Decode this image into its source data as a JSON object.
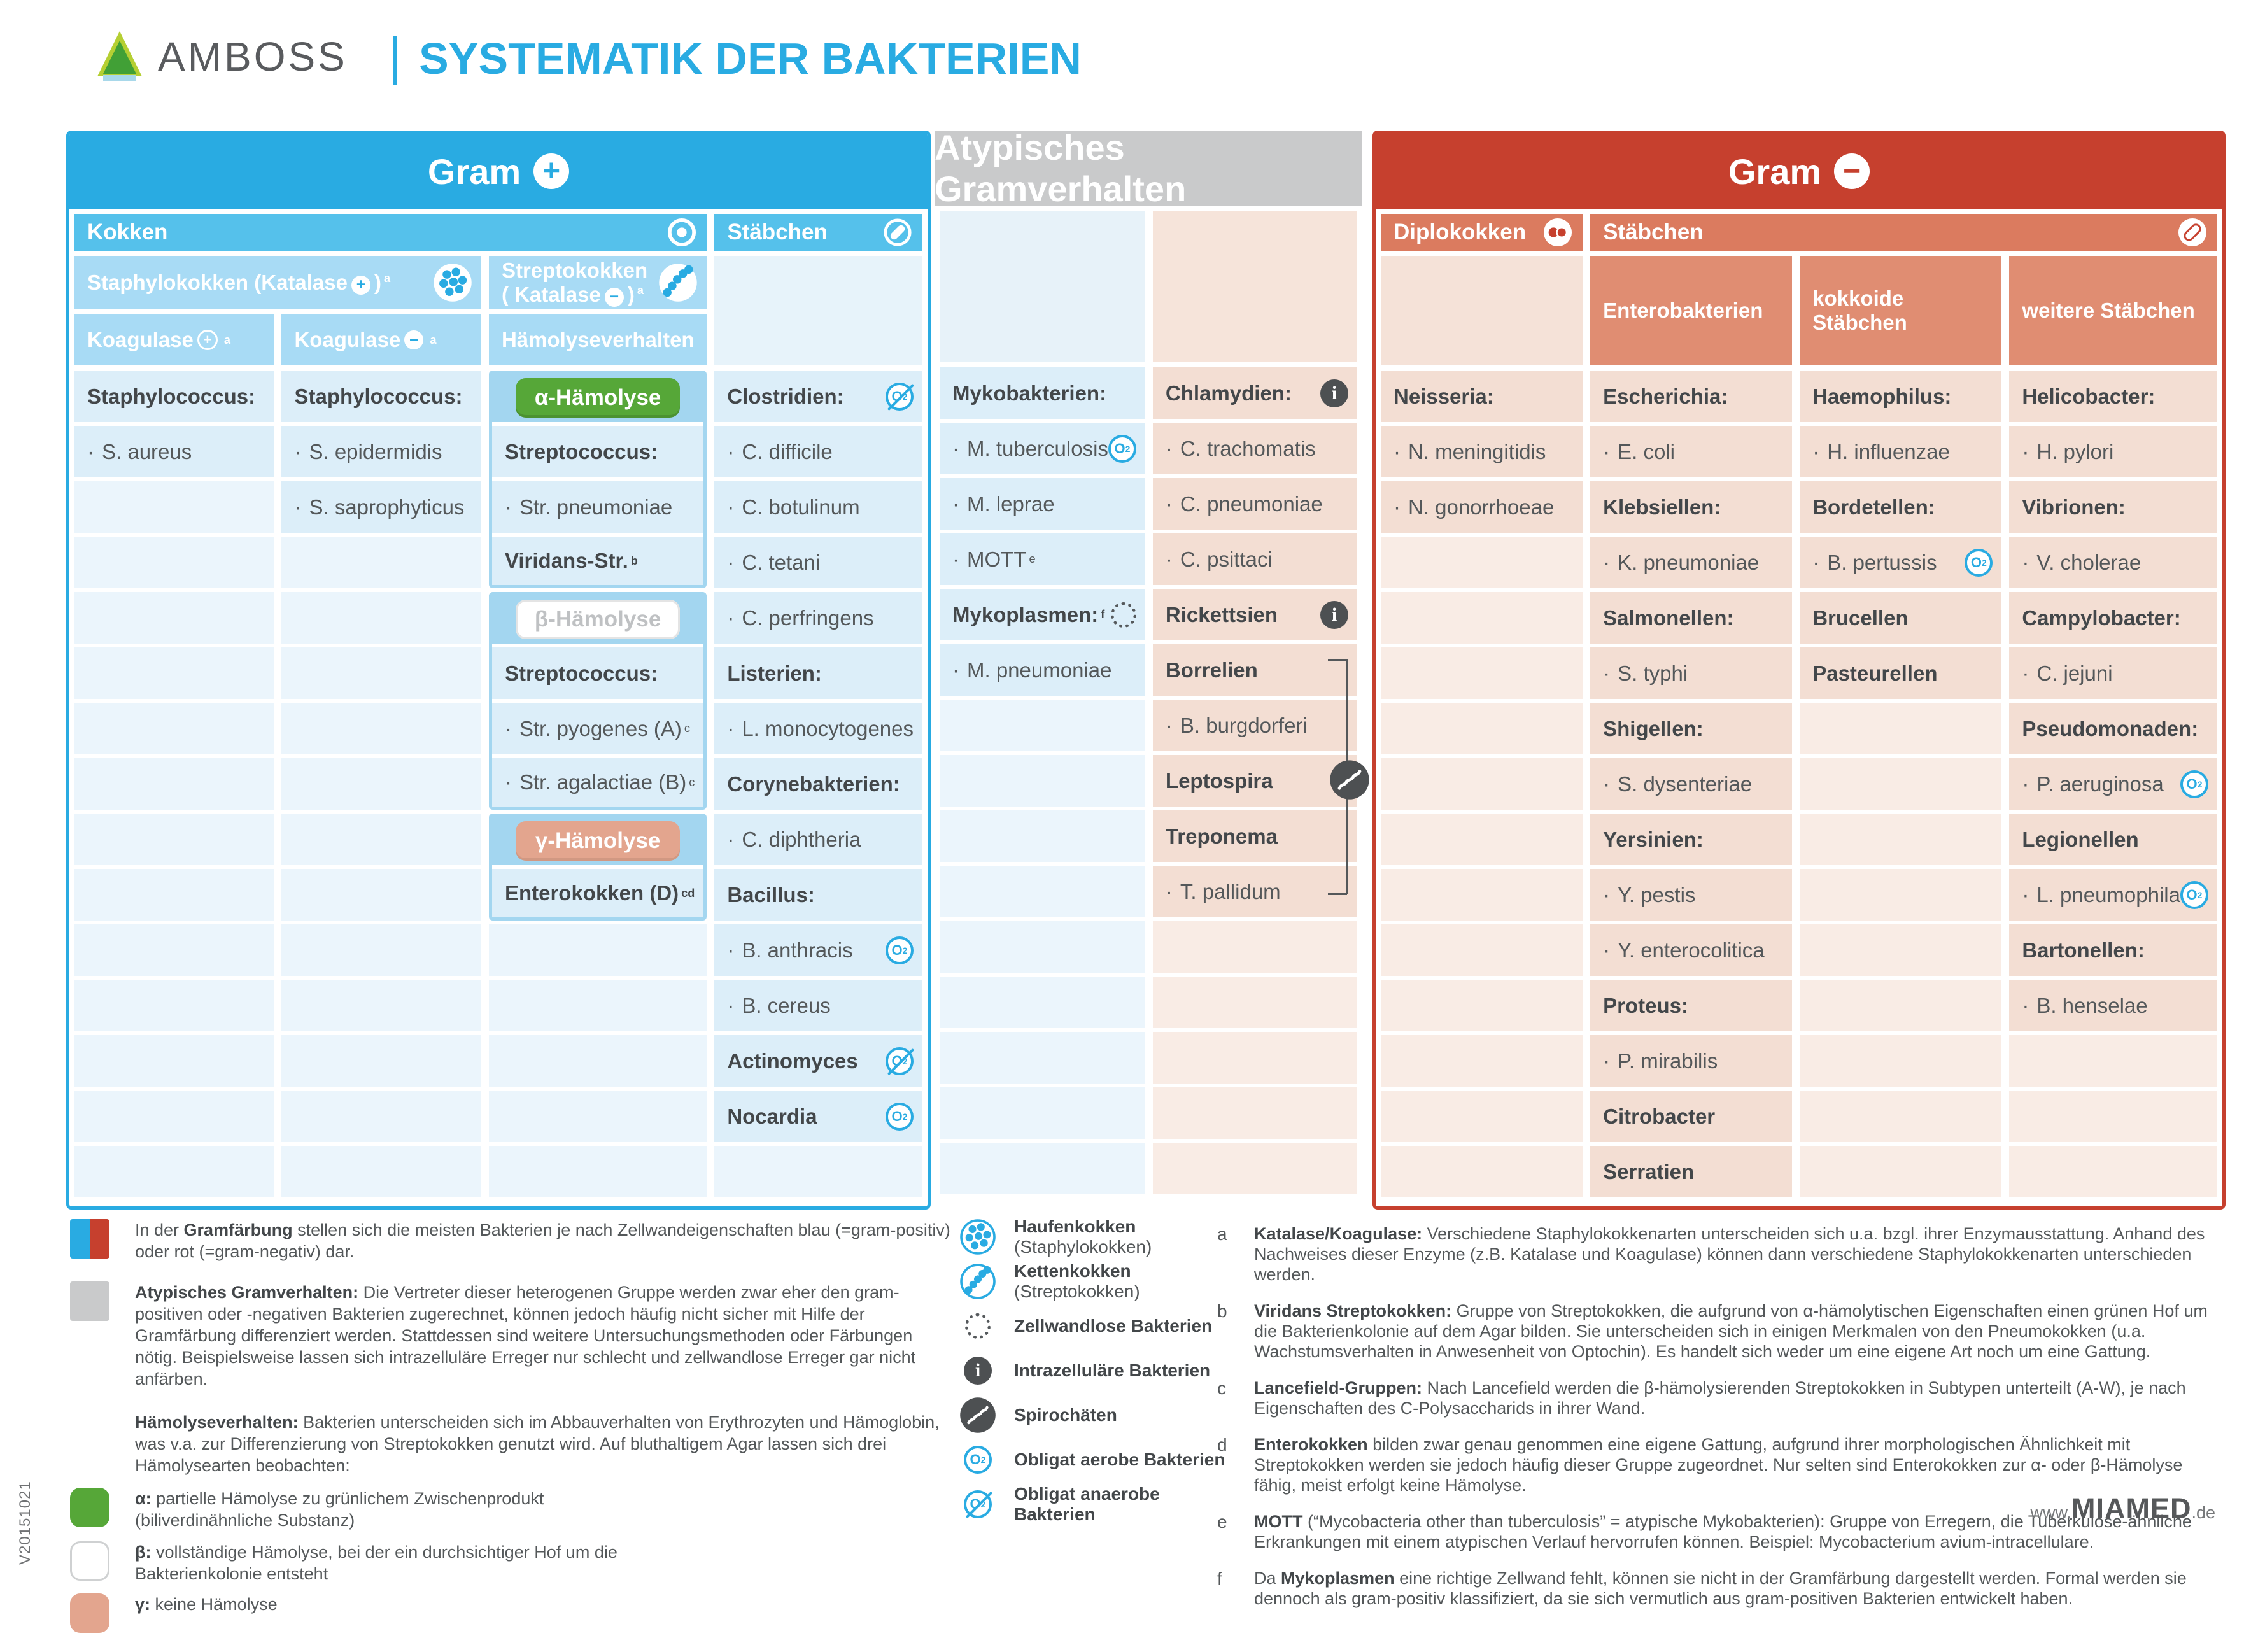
{
  "brand": {
    "name": "AMBOSS"
  },
  "title": "SYSTEMATIK DER BAKTERIEN",
  "version": "V20151021",
  "footer": {
    "pre": "www.",
    "mid": "MIAMED",
    "post": ".de"
  },
  "colors": {
    "cyan": "#29abe2",
    "cyan_row": "#55c1eb",
    "cyan_sub": "#a8dbf5",
    "blue_row": "#dceef9",
    "red": "#c6402e",
    "salmon_row": "#db7b5f",
    "salmon_sub": "#e08d72",
    "peach_row": "#f3ded3",
    "gray_header": "#c9cacb",
    "green_pill": "#56a738",
    "gamma_pill": "#e3a58e"
  },
  "gram_plus": {
    "title": "Gram",
    "sign": "+",
    "headers": {
      "kokken": "Kokken",
      "staebchen": "Stäbchen",
      "staph": {
        "pre": "Staphylokokken  (Katalase",
        "sign": "+",
        "post": ")",
        "sup": "a"
      },
      "strep": {
        "line1": "Streptokokken",
        "pre2": "( Katalase",
        "sign": "−",
        "post2": ")",
        "sup": "a"
      },
      "koagulase_pos": {
        "pre": "Koagulase",
        "sign": "+",
        "sup": "a"
      },
      "koagulase_neg": {
        "pre": "Koagulase",
        "sign": "−",
        "sup": "a"
      },
      "haemolyse": "Hämolyseverhalten"
    },
    "columns": {
      "koagulase_pos": [
        {
          "variant": "head",
          "text": "Staphylococcus:"
        },
        {
          "variant": "item",
          "text": "S. aureus"
        },
        {
          "variant": "empty"
        },
        {
          "variant": "empty"
        },
        {
          "variant": "empty"
        },
        {
          "variant": "empty"
        },
        {
          "variant": "empty"
        },
        {
          "variant": "empty"
        },
        {
          "variant": "empty"
        },
        {
          "variant": "empty"
        },
        {
          "variant": "empty"
        },
        {
          "variant": "empty"
        },
        {
          "variant": "empty"
        },
        {
          "variant": "empty"
        },
        {
          "variant": "empty"
        }
      ],
      "koagulase_neg": [
        {
          "variant": "head",
          "text": "Staphylococcus:"
        },
        {
          "variant": "item",
          "text": "S. epidermidis"
        },
        {
          "variant": "item",
          "text": "S. saprophyticus"
        },
        {
          "variant": "empty"
        },
        {
          "variant": "empty"
        },
        {
          "variant": "empty"
        },
        {
          "variant": "empty"
        },
        {
          "variant": "empty"
        },
        {
          "variant": "empty"
        },
        {
          "variant": "empty"
        },
        {
          "variant": "empty"
        },
        {
          "variant": "empty"
        },
        {
          "variant": "empty"
        },
        {
          "variant": "empty"
        },
        {
          "variant": "empty"
        }
      ],
      "haemolyse": [
        {
          "group": [
            {
              "variant": "band",
              "pill": "alpha",
              "text": "α-Hämolyse"
            },
            {
              "variant": "head",
              "text": "Streptococcus:"
            },
            {
              "variant": "item",
              "text": "Str. pneumoniae"
            },
            {
              "variant": "head",
              "text": "Viridans-Str.",
              "sup": "b"
            }
          ]
        },
        {
          "group": [
            {
              "variant": "band",
              "pill": "beta",
              "text": "β-Hämolyse"
            },
            {
              "variant": "head",
              "text": "Streptococcus:"
            },
            {
              "variant": "item",
              "text": "Str. pyogenes (A)",
              "sup": "c"
            },
            {
              "variant": "item",
              "text": "Str. agalactiae (B)",
              "sup": "c"
            }
          ]
        },
        {
          "group": [
            {
              "variant": "band",
              "pill": "gamma",
              "text": "γ-Hämolyse"
            },
            {
              "variant": "head",
              "text": "Enterokokken (D)",
              "sup": "cd"
            }
          ]
        },
        {
          "variant": "empty"
        },
        {
          "variant": "empty"
        },
        {
          "variant": "empty"
        },
        {
          "variant": "empty"
        },
        {
          "variant": "empty"
        }
      ],
      "staebchen": [
        {
          "variant": "head",
          "text": "Clostridien:",
          "icon": "anaerobe-icon"
        },
        {
          "variant": "item",
          "text": "C. difficile"
        },
        {
          "variant": "item",
          "text": "C. botulinum"
        },
        {
          "variant": "item",
          "text": "C. tetani"
        },
        {
          "variant": "item",
          "text": "C. perfringens"
        },
        {
          "variant": "head",
          "text": "Listerien:"
        },
        {
          "variant": "item",
          "text": "L. monocytogenes"
        },
        {
          "variant": "head",
          "text": "Corynebakterien:"
        },
        {
          "variant": "item",
          "text": "C. diphtheria"
        },
        {
          "variant": "head",
          "text": "Bacillus:"
        },
        {
          "variant": "item",
          "text": "B. anthracis",
          "icon": "aerobe-icon"
        },
        {
          "variant": "item",
          "text": "B. cereus"
        },
        {
          "variant": "head",
          "text": "Actinomyces",
          "icon": "anaerobe-icon"
        },
        {
          "variant": "head",
          "text": "Nocardia",
          "icon": "aerobe-icon"
        },
        {
          "variant": "empty"
        }
      ]
    }
  },
  "atypical": {
    "title": "Atypisches Gramverhalten",
    "columns": {
      "left": [
        {
          "variant": "head",
          "text": "Mykobakterien:"
        },
        {
          "variant": "item",
          "text": "M. tuberculosis",
          "icon": "aerobe-icon"
        },
        {
          "variant": "item",
          "text": "M. leprae"
        },
        {
          "variant": "item",
          "text": "MOTT",
          "sup": "e"
        },
        {
          "variant": "head",
          "text": "Mykoplasmen:",
          "sup": "f",
          "icon": "cellwall-icon"
        },
        {
          "variant": "item",
          "text": "M. pneumoniae"
        },
        {
          "variant": "empty"
        },
        {
          "variant": "empty"
        },
        {
          "variant": "empty"
        },
        {
          "variant": "empty"
        },
        {
          "variant": "empty"
        },
        {
          "variant": "empty"
        },
        {
          "variant": "empty"
        },
        {
          "variant": "empty"
        },
        {
          "variant": "empty"
        }
      ],
      "right": [
        {
          "variant": "head",
          "text": "Chlamydien:",
          "icon": "info-icon"
        },
        {
          "variant": "item",
          "text": "C. trachomatis"
        },
        {
          "variant": "item",
          "text": "C. pneumoniae"
        },
        {
          "variant": "item",
          "text": "C. psittaci"
        },
        {
          "variant": "head",
          "text": "Rickettsien",
          "icon": "info-icon"
        },
        {
          "variant": "head",
          "text": "Borrelien"
        },
        {
          "variant": "item",
          "text": "B. burgdorferi"
        },
        {
          "variant": "head",
          "text": "Leptospira"
        },
        {
          "variant": "head",
          "text": "Treponema"
        },
        {
          "variant": "item",
          "text": "T. pallidum"
        },
        {
          "variant": "empty"
        },
        {
          "variant": "empty"
        },
        {
          "variant": "empty"
        },
        {
          "variant": "empty"
        },
        {
          "variant": "empty"
        }
      ]
    }
  },
  "gram_minus": {
    "title": "Gram",
    "sign": "−",
    "headers": {
      "diplokokken": "Diplokokken",
      "staebchen": "Stäbchen"
    },
    "subheaders": [
      "Enterobakterien",
      "kokkoide Stäbchen",
      "weitere Stäbchen"
    ],
    "columns": {
      "diplokokken": [
        {
          "variant": "head",
          "text": "Neisseria:"
        },
        {
          "variant": "item",
          "text": "N. meningitidis"
        },
        {
          "variant": "item",
          "text": "N. gonorrhoeae"
        },
        {
          "variant": "empty"
        },
        {
          "variant": "empty"
        },
        {
          "variant": "empty"
        },
        {
          "variant": "empty"
        },
        {
          "variant": "empty"
        },
        {
          "variant": "empty"
        },
        {
          "variant": "empty"
        },
        {
          "variant": "empty"
        },
        {
          "variant": "empty"
        },
        {
          "variant": "empty"
        },
        {
          "variant": "empty"
        },
        {
          "variant": "empty"
        }
      ],
      "entero": [
        {
          "variant": "head",
          "text": "Escherichia:"
        },
        {
          "variant": "item",
          "text": "E. coli"
        },
        {
          "variant": "head",
          "text": "Klebsiellen:"
        },
        {
          "variant": "item",
          "text": "K. pneumoniae"
        },
        {
          "variant": "head",
          "text": "Salmonellen:"
        },
        {
          "variant": "item",
          "text": "S. typhi"
        },
        {
          "variant": "head",
          "text": "Shigellen:"
        },
        {
          "variant": "item",
          "text": "S. dysenteriae"
        },
        {
          "variant": "head",
          "text": "Yersinien:"
        },
        {
          "variant": "item",
          "text": "Y. pestis"
        },
        {
          "variant": "item",
          "text": "Y. enterocolitica"
        },
        {
          "variant": "head",
          "text": "Proteus:"
        },
        {
          "variant": "item",
          "text": "P. mirabilis"
        },
        {
          "variant": "head",
          "text": "Citrobacter"
        },
        {
          "variant": "head",
          "text": "Serratien"
        }
      ],
      "kokkoide": [
        {
          "variant": "head",
          "text": "Haemophilus:"
        },
        {
          "variant": "item",
          "text": "H. influenzae"
        },
        {
          "variant": "head",
          "text": "Bordetellen:"
        },
        {
          "variant": "item",
          "text": "B. pertussis",
          "icon": "aerobe-icon"
        },
        {
          "variant": "head",
          "text": "Brucellen"
        },
        {
          "variant": "head",
          "text": "Pasteurellen"
        },
        {
          "variant": "empty"
        },
        {
          "variant": "empty"
        },
        {
          "variant": "empty"
        },
        {
          "variant": "empty"
        },
        {
          "variant": "empty"
        },
        {
          "variant": "empty"
        },
        {
          "variant": "empty"
        },
        {
          "variant": "empty"
        },
        {
          "variant": "empty"
        }
      ],
      "weitere": [
        {
          "variant": "head",
          "text": "Helicobacter:"
        },
        {
          "variant": "item",
          "text": "H. pylori"
        },
        {
          "variant": "head",
          "text": "Vibrionen:"
        },
        {
          "variant": "item",
          "text": "V. cholerae"
        },
        {
          "variant": "head",
          "text": "Campylobacter:"
        },
        {
          "variant": "item",
          "text": "C. jejuni"
        },
        {
          "variant": "head",
          "text": "Pseudomonaden:"
        },
        {
          "variant": "item",
          "text": "P. aeruginosa",
          "icon": "aerobe-icon"
        },
        {
          "variant": "head",
          "text": "Legionellen"
        },
        {
          "variant": "item",
          "text": "L. pneumophila",
          "icon": "aerobe-icon"
        },
        {
          "variant": "head",
          "text": "Bartonellen:"
        },
        {
          "variant": "item",
          "text": "B. henselae"
        },
        {
          "variant": "empty"
        },
        {
          "variant": "empty"
        },
        {
          "variant": "empty"
        }
      ]
    }
  },
  "legend_left": [
    {
      "swatch": "gram-split",
      "m": "",
      "pre": "In der ",
      "lead": "Gramfärbung",
      "text": " stellen sich die meisten Bakterien je nach Zellwandeigenschaften blau (=gram-positiv) oder rot (=gram-negativ) dar."
    },
    {
      "swatch": "gray",
      "m": "m2",
      "pre": "",
      "lead": "Atypisches Gramverhalten:",
      "text": " Die Vertreter dieser heterogenen Gruppe werden zwar eher den gram-positiven oder -negativen Bakterien zugerechnet, können jedoch häufig nicht sicher mit Hilfe der Gramfärbung differenziert werden. Stattdessen sind weitere Untersuchungsmethoden oder Färbungen nötig. Beispielsweise lassen sich intrazelluläre Erreger nur schlecht und zellwandlose Erreger gar nicht anfärben."
    },
    {
      "swatch": "none",
      "m": "m3",
      "pre": "",
      "lead": "Hämolyseverhalten:",
      "text": " Bakterien unterscheiden sich im Abbauverhalten von Erythrozyten und Hämoglobin, was v.a. zur Differenzierung von Streptokokken genutzt wird. Auf bluthaltigem Agar lassen sich drei Hämolysearten beobachten:"
    },
    {
      "swatch": "green",
      "m": "m4 narrow",
      "pre": "",
      "lead": "α:",
      "text": " partielle Hämolyse zu grünlichem Zwischenprodukt (biliverdinähnliche Substanz)"
    },
    {
      "swatch": "white",
      "m": "m5 narrow",
      "pre": "",
      "lead": "β:",
      "text": " vollständige Hämolyse, bei der ein durchsichtiger Hof um die Bakterienkolonie entsteht"
    },
    {
      "swatch": "salmon",
      "m": "narrow",
      "pre": "",
      "lead": "γ:",
      "text": " keine Hämolyse"
    }
  ],
  "legend_icons": [
    {
      "icon": "cluster-icon",
      "lead": "Haufenkokken",
      "text": " (Staphylokokken)"
    },
    {
      "icon": "chain-icon",
      "lead": "Kettenkokken",
      "text": " (Streptokokken)"
    },
    {
      "icon": "cellwall-icon",
      "lead": "Zellwandlose Bakterien",
      "text": ""
    },
    {
      "icon": "info-icon",
      "lead": "Intrazelluläre Bakterien",
      "text": ""
    },
    {
      "icon": "spiro-icon",
      "lead": "Spirochäten",
      "text": ""
    },
    {
      "icon": "aerobe-icon",
      "lead": "Obligat aerobe Bakterien",
      "text": ""
    },
    {
      "icon": "anaerobe-icon",
      "lead": "Obligat anaerobe Bakterien",
      "text": ""
    }
  ],
  "footnotes": [
    {
      "letter": "a",
      "pre": "",
      "lead": "Katalase/Koagulase:",
      "text": " Verschiedene Staphylokokkenarten unterscheiden sich u.a. bzgl. ihrer Enzymausstattung. Anhand des Nachweises dieser Enzyme (z.B. Katalase und Koagulase) können dann verschiedene Staphylokokkenarten unterschieden werden."
    },
    {
      "letter": "b",
      "pre": "",
      "lead": "Viridans Streptokokken:",
      "text": " Gruppe von Streptokokken, die aufgrund von α-hämolytischen Eigenschaften einen grünen Hof um die Bakterienkolonie auf dem Agar bilden. Sie unterscheiden sich in einigen Merkmalen von den Pneumokokken (u.a. Wachstumsverhalten in Anwesenheit von Optochin). Es handelt sich weder um eine eigene Art noch um eine Gattung."
    },
    {
      "letter": "c",
      "pre": "",
      "lead": "Lancefield-Gruppen:",
      "text": " Nach Lancefield werden die β-hämolysierenden Streptokokken in Subtypen unterteilt (A-W), je nach Eigenschaften des C-Polysaccharids in ihrer Wand."
    },
    {
      "letter": "d",
      "pre": "",
      "lead": "Enterokokken",
      "text": " bilden zwar genau genommen eine eigene Gattung, aufgrund ihrer morphologischen Ähnlichkeit mit Streptokokken werden sie jedoch häufig dieser Gruppe zugeordnet. Nur selten sind Enterokokken zur α- oder β-Hämolyse fähig, meist erfolgt keine Hämolyse."
    },
    {
      "letter": "e",
      "pre": "",
      "lead": "MOTT",
      "text": " (“Mycobacteria other than tuberculosis” = atypische Mykobakterien): Gruppe von Erregern, die Tuberkulose-ähnliche Erkrankungen mit einem atypischen Verlauf hervorrufen können. Beispiel: Mycobacterium avium-intracellulare."
    },
    {
      "letter": "f",
      "pre": "Da ",
      "lead": "Mykoplasmen",
      "text": " eine richtige Zellwand fehlt, können sie nicht in der Gramfärbung dargestellt werden. Formal werden sie dennoch als gram-positiv klassifiziert, da sie sich vermutlich aus gram-positiven Bakterien entwickelt haben."
    }
  ]
}
